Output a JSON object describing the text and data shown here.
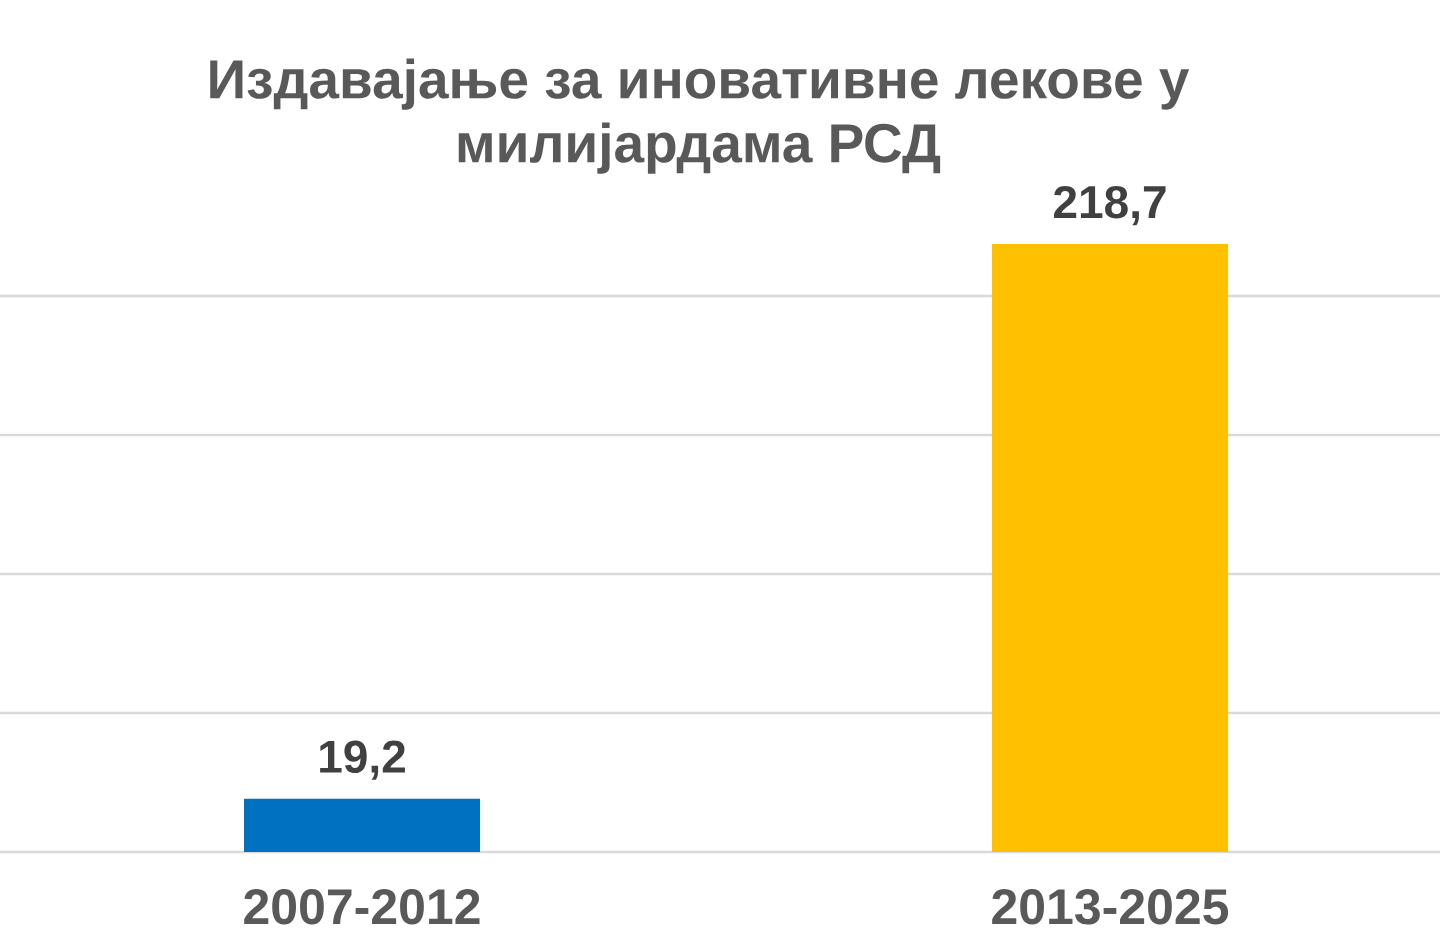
{
  "chart_data": {
    "type": "bar",
    "title": "Издавајање за иновативне лекове у милијардама РСД",
    "categories": [
      "2007-2012",
      "2013-2025"
    ],
    "values": [
      19.2,
      218.7
    ],
    "colors": [
      "#0070c0",
      "#ffc000"
    ],
    "value_labels": [
      "19,2",
      "218,7"
    ],
    "yticks": [
      {
        "value": 0,
        "label": null
      },
      {
        "value": 50,
        "label": null
      },
      {
        "value": 100,
        "label": null
      },
      {
        "value": 150,
        "label": null
      },
      {
        "value": 200,
        "label": null
      }
    ],
    "grid": "y",
    "tick_labels": "x"
  }
}
